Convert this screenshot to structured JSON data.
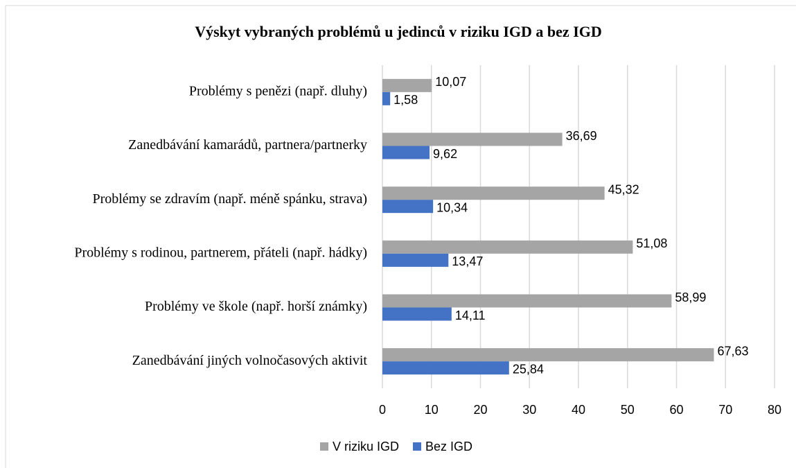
{
  "chart_data": {
    "type": "bar",
    "orientation": "horizontal",
    "title": "Výskyt vybraných problémů u jedinců v riziku IGD a bez IGD",
    "categories": [
      "Problémy s penězi (např. dluhy)",
      "Zanedbávání kamarádů, partnera/partnerky",
      "Problémy se zdravím (např. méně spánku, strava)",
      "Problémy s rodinou, partnerem, přáteli (např. hádky)",
      "Problémy ve škole (např. horší známky)",
      "Zanedbávání jiných volnočasových aktivit"
    ],
    "series": [
      {
        "name": "V riziku IGD",
        "color": "#a5a5a5",
        "values": [
          10.07,
          36.69,
          45.32,
          51.08,
          58.99,
          67.63
        ],
        "value_labels": [
          "10,07",
          "36,69",
          "45,32",
          "51,08",
          "58,99",
          "67,63"
        ]
      },
      {
        "name": "Bez IGD",
        "color": "#4472c4",
        "values": [
          1.58,
          9.62,
          10.34,
          13.47,
          14.11,
          25.84
        ],
        "value_labels": [
          "1,58",
          "9,62",
          "10,34",
          "13,47",
          "14,11",
          "25,84"
        ]
      }
    ],
    "xlim": [
      0,
      80
    ],
    "xticks": [
      0,
      10,
      20,
      30,
      40,
      50,
      60,
      70,
      80
    ],
    "grid": true,
    "legend": "bottom"
  }
}
